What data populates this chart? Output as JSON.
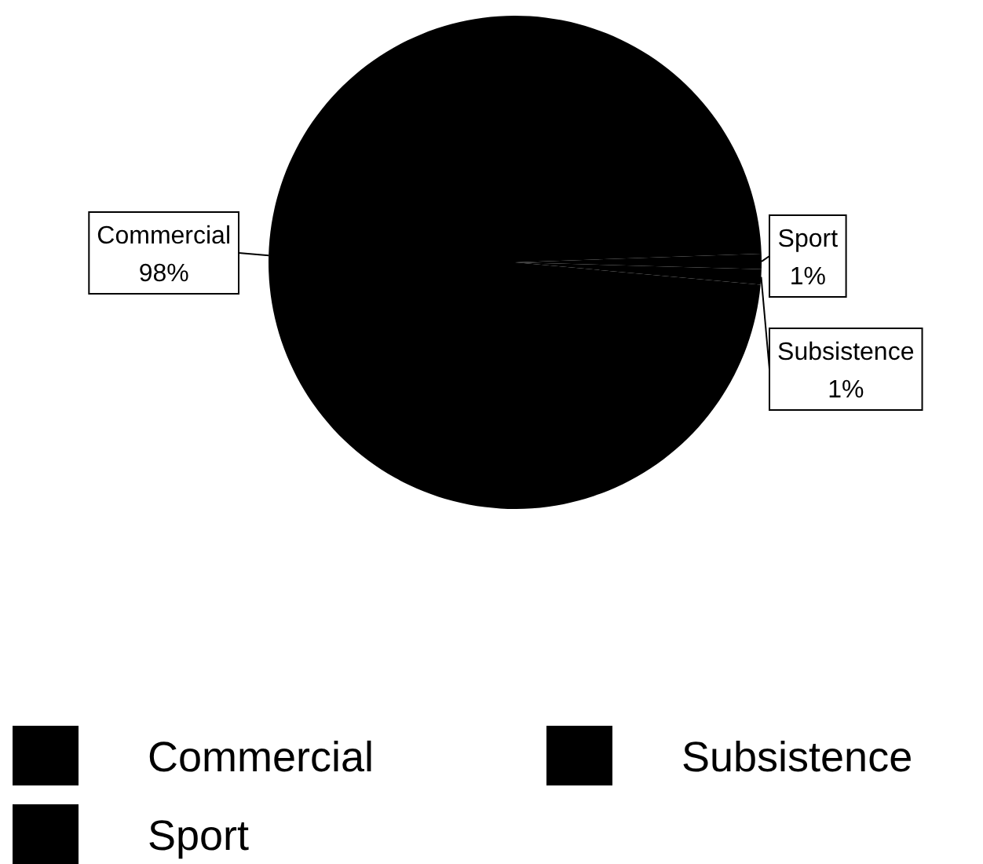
{
  "chart_data": {
    "type": "pie",
    "categories": [
      "Commercial",
      "Sport",
      "Subsistence"
    ],
    "values": [
      98,
      1,
      1
    ],
    "colors": [
      "#000000",
      "#000000",
      "#000000"
    ],
    "value_labels": [
      "98%",
      "1%",
      "1%"
    ],
    "legend": "bottom"
  }
}
